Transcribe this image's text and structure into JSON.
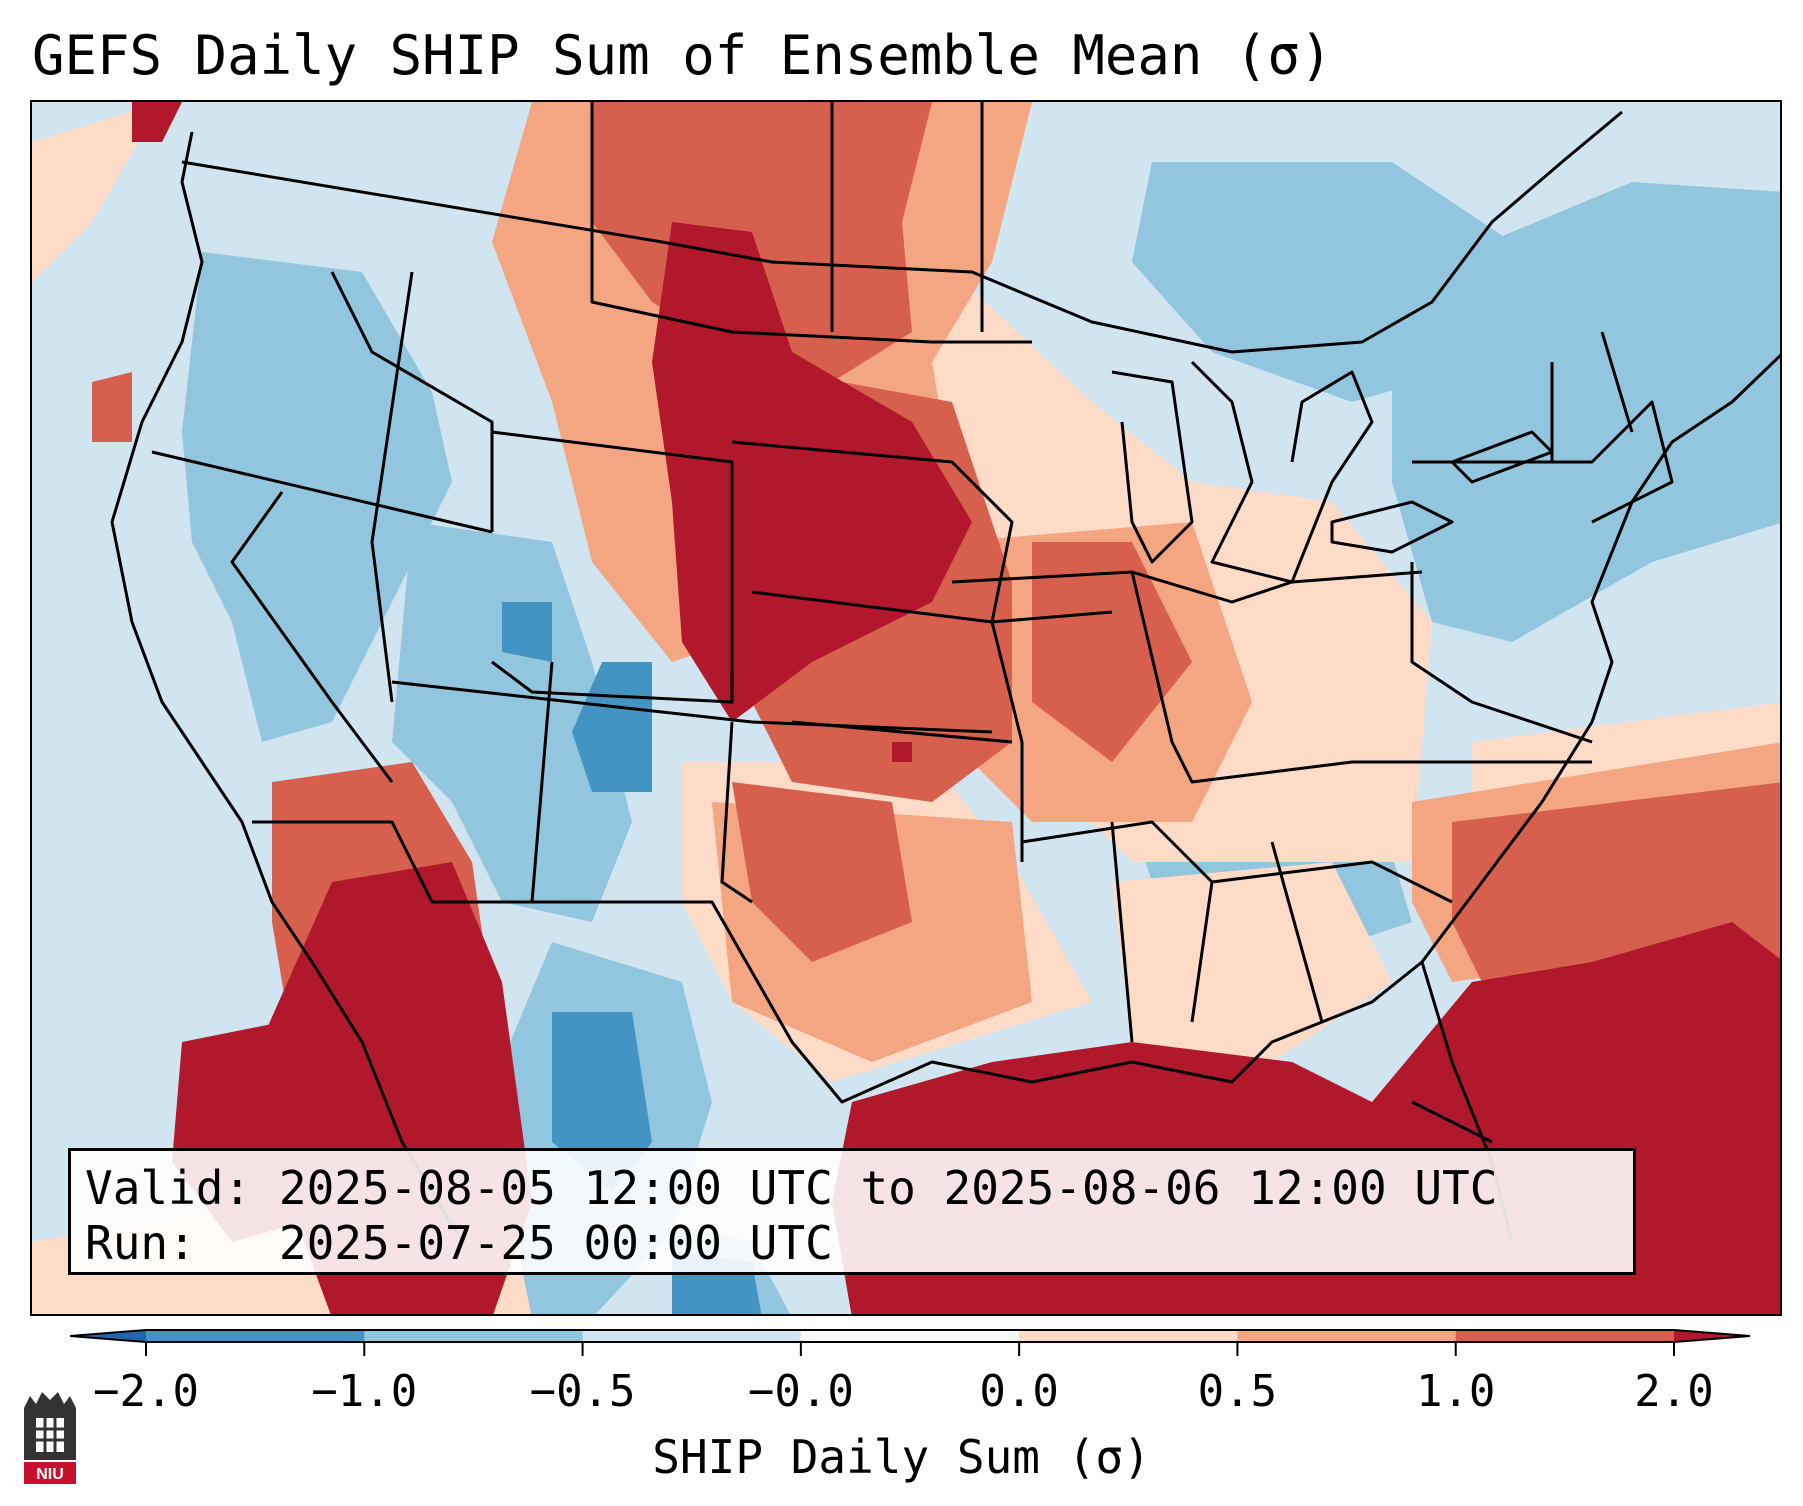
{
  "title": "GEFS Daily SHIP Sum of Ensemble Mean (σ)",
  "info": {
    "valid_label": "Valid:",
    "valid_value": "2025-08-05 12:00 UTC to 2025-08-06 12:00 UTC",
    "run_label": "Run:",
    "run_value": "2025-07-25 00:00 UTC"
  },
  "colorbar": {
    "label": "SHIP Daily Sum (σ)",
    "tick_labels": [
      "−2.0",
      "−1.0",
      "−0.5",
      "−0.0",
      "0.0",
      "0.5",
      "1.0",
      "2.0"
    ],
    "colors": [
      "#2166ac",
      "#4393c3",
      "#92c5de",
      "#d1e5f0",
      "#f7f7f7",
      "#fddbc7",
      "#f4a582",
      "#d6604d",
      "#b2182b"
    ],
    "extend": "both"
  },
  "map": {
    "region": "Contiguous United States",
    "projection": "Lambert Conformal",
    "colors": {
      "strong_positive": "#b2182b",
      "positive": "#d6604d",
      "weak_positive": "#f4a582",
      "slight_positive": "#fddbc7",
      "slight_negative": "#d1e5f0",
      "weak_negative": "#92c5de",
      "negative": "#4393c3"
    }
  },
  "logo": {
    "text": "NIU",
    "icon": "niu-logo-icon"
  }
}
